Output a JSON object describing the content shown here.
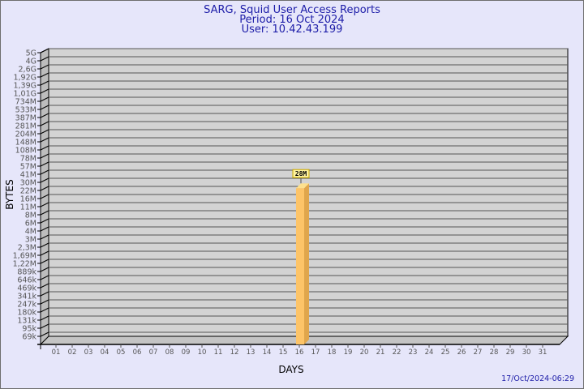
{
  "chart_data": {
    "type": "bar",
    "title": "SARG, Squid User Access Reports",
    "subtitle_lines": [
      "Period: 16 Oct 2024",
      "User: 10.42.43.199"
    ],
    "xlabel": "DAYS",
    "ylabel": "BYTES",
    "y_scale": "log",
    "y_tick_labels": [
      "5G",
      "4G",
      "2,6G",
      "1,92G",
      "1,39G",
      "1,01G",
      "734M",
      "533M",
      "387M",
      "281M",
      "204M",
      "148M",
      "108M",
      "78M",
      "57M",
      "41M",
      "30M",
      "22M",
      "16M",
      "11M",
      "8M",
      "6M",
      "4M",
      "3M",
      "2,3M",
      "1,69M",
      "1,22M",
      "889k",
      "646k",
      "469k",
      "341k",
      "247k",
      "180k",
      "131k",
      "95k",
      "69k"
    ],
    "categories": [
      "01",
      "02",
      "03",
      "04",
      "05",
      "06",
      "07",
      "08",
      "09",
      "10",
      "11",
      "12",
      "13",
      "14",
      "15",
      "16",
      "17",
      "18",
      "19",
      "20",
      "21",
      "22",
      "23",
      "24",
      "25",
      "26",
      "27",
      "28",
      "29",
      "30",
      "31"
    ],
    "values": [
      null,
      null,
      null,
      null,
      null,
      null,
      null,
      null,
      null,
      null,
      null,
      null,
      null,
      null,
      null,
      28000000,
      null,
      null,
      null,
      null,
      null,
      null,
      null,
      null,
      null,
      null,
      null,
      null,
      null,
      null,
      null
    ],
    "data_labels": {
      "16": "28M"
    },
    "grid": true,
    "colors": {
      "background": "#e6e6fa",
      "plot": "#d3d3d3",
      "bar": "#fdc468",
      "bar_side": "#e0a64c",
      "bar_top": "#fde08e",
      "label_box": "#fff3a0",
      "title": "#1c1ca8"
    }
  },
  "footer": {
    "timestamp": "17/Oct/2024-06:29"
  }
}
